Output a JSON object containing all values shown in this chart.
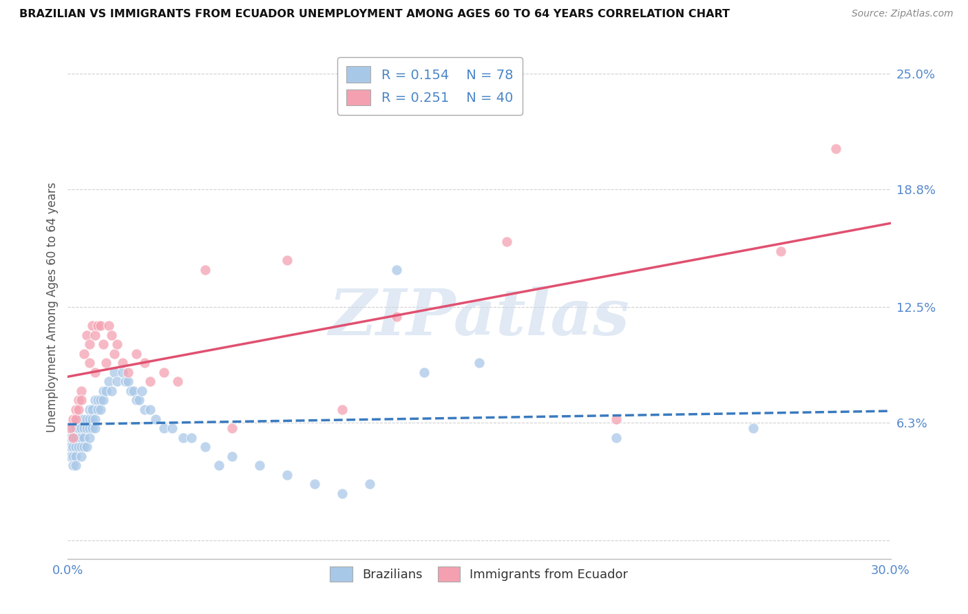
{
  "title": "BRAZILIAN VS IMMIGRANTS FROM ECUADOR UNEMPLOYMENT AMONG AGES 60 TO 64 YEARS CORRELATION CHART",
  "source": "Source: ZipAtlas.com",
  "ylabel": "Unemployment Among Ages 60 to 64 years",
  "xmin": 0.0,
  "xmax": 0.3,
  "ymin": -0.01,
  "ymax": 0.26,
  "yticks": [
    0.0,
    0.063,
    0.125,
    0.188,
    0.25
  ],
  "ytick_labels": [
    "",
    "6.3%",
    "12.5%",
    "18.8%",
    "25.0%"
  ],
  "grid_color": "#d0d0d0",
  "background_color": "#ffffff",
  "watermark_text": "ZIPatlas",
  "series": [
    {
      "name": "Brazilians",
      "R": 0.154,
      "N": 78,
      "dot_color": "#a8c8e8",
      "line_color": "#3a7abf",
      "line_style": "--",
      "x": [
        0.001,
        0.001,
        0.001,
        0.002,
        0.002,
        0.002,
        0.002,
        0.002,
        0.003,
        0.003,
        0.003,
        0.003,
        0.003,
        0.004,
        0.004,
        0.004,
        0.004,
        0.005,
        0.005,
        0.005,
        0.005,
        0.005,
        0.006,
        0.006,
        0.006,
        0.006,
        0.007,
        0.007,
        0.007,
        0.008,
        0.008,
        0.008,
        0.008,
        0.009,
        0.009,
        0.009,
        0.01,
        0.01,
        0.01,
        0.011,
        0.011,
        0.012,
        0.012,
        0.013,
        0.013,
        0.014,
        0.015,
        0.016,
        0.017,
        0.018,
        0.02,
        0.021,
        0.022,
        0.023,
        0.024,
        0.025,
        0.026,
        0.027,
        0.028,
        0.03,
        0.032,
        0.035,
        0.038,
        0.042,
        0.045,
        0.05,
        0.055,
        0.06,
        0.07,
        0.08,
        0.09,
        0.1,
        0.11,
        0.12,
        0.13,
        0.15,
        0.2,
        0.25
      ],
      "y": [
        0.055,
        0.05,
        0.045,
        0.06,
        0.055,
        0.05,
        0.045,
        0.04,
        0.06,
        0.055,
        0.05,
        0.045,
        0.04,
        0.065,
        0.06,
        0.055,
        0.05,
        0.065,
        0.06,
        0.055,
        0.05,
        0.045,
        0.065,
        0.06,
        0.055,
        0.05,
        0.065,
        0.06,
        0.05,
        0.07,
        0.065,
        0.06,
        0.055,
        0.07,
        0.065,
        0.06,
        0.075,
        0.065,
        0.06,
        0.075,
        0.07,
        0.075,
        0.07,
        0.08,
        0.075,
        0.08,
        0.085,
        0.08,
        0.09,
        0.085,
        0.09,
        0.085,
        0.085,
        0.08,
        0.08,
        0.075,
        0.075,
        0.08,
        0.07,
        0.07,
        0.065,
        0.06,
        0.06,
        0.055,
        0.055,
        0.05,
        0.04,
        0.045,
        0.04,
        0.035,
        0.03,
        0.025,
        0.03,
        0.145,
        0.09,
        0.095,
        0.055,
        0.06
      ]
    },
    {
      "name": "Immigrants from Ecuador",
      "R": 0.251,
      "N": 40,
      "dot_color": "#f4a0b0",
      "line_color": "#e05070",
      "line_style": "-",
      "x": [
        0.001,
        0.002,
        0.002,
        0.003,
        0.003,
        0.004,
        0.004,
        0.005,
        0.005,
        0.006,
        0.007,
        0.008,
        0.008,
        0.009,
        0.01,
        0.01,
        0.011,
        0.012,
        0.013,
        0.014,
        0.015,
        0.016,
        0.017,
        0.018,
        0.02,
        0.022,
        0.025,
        0.028,
        0.03,
        0.035,
        0.04,
        0.05,
        0.06,
        0.08,
        0.1,
        0.12,
        0.16,
        0.2,
        0.26,
        0.28
      ],
      "y": [
        0.06,
        0.065,
        0.055,
        0.07,
        0.065,
        0.075,
        0.07,
        0.08,
        0.075,
        0.1,
        0.11,
        0.105,
        0.095,
        0.115,
        0.11,
        0.09,
        0.115,
        0.115,
        0.105,
        0.095,
        0.115,
        0.11,
        0.1,
        0.105,
        0.095,
        0.09,
        0.1,
        0.095,
        0.085,
        0.09,
        0.085,
        0.145,
        0.06,
        0.15,
        0.07,
        0.12,
        0.16,
        0.065,
        0.155,
        0.21
      ]
    }
  ]
}
